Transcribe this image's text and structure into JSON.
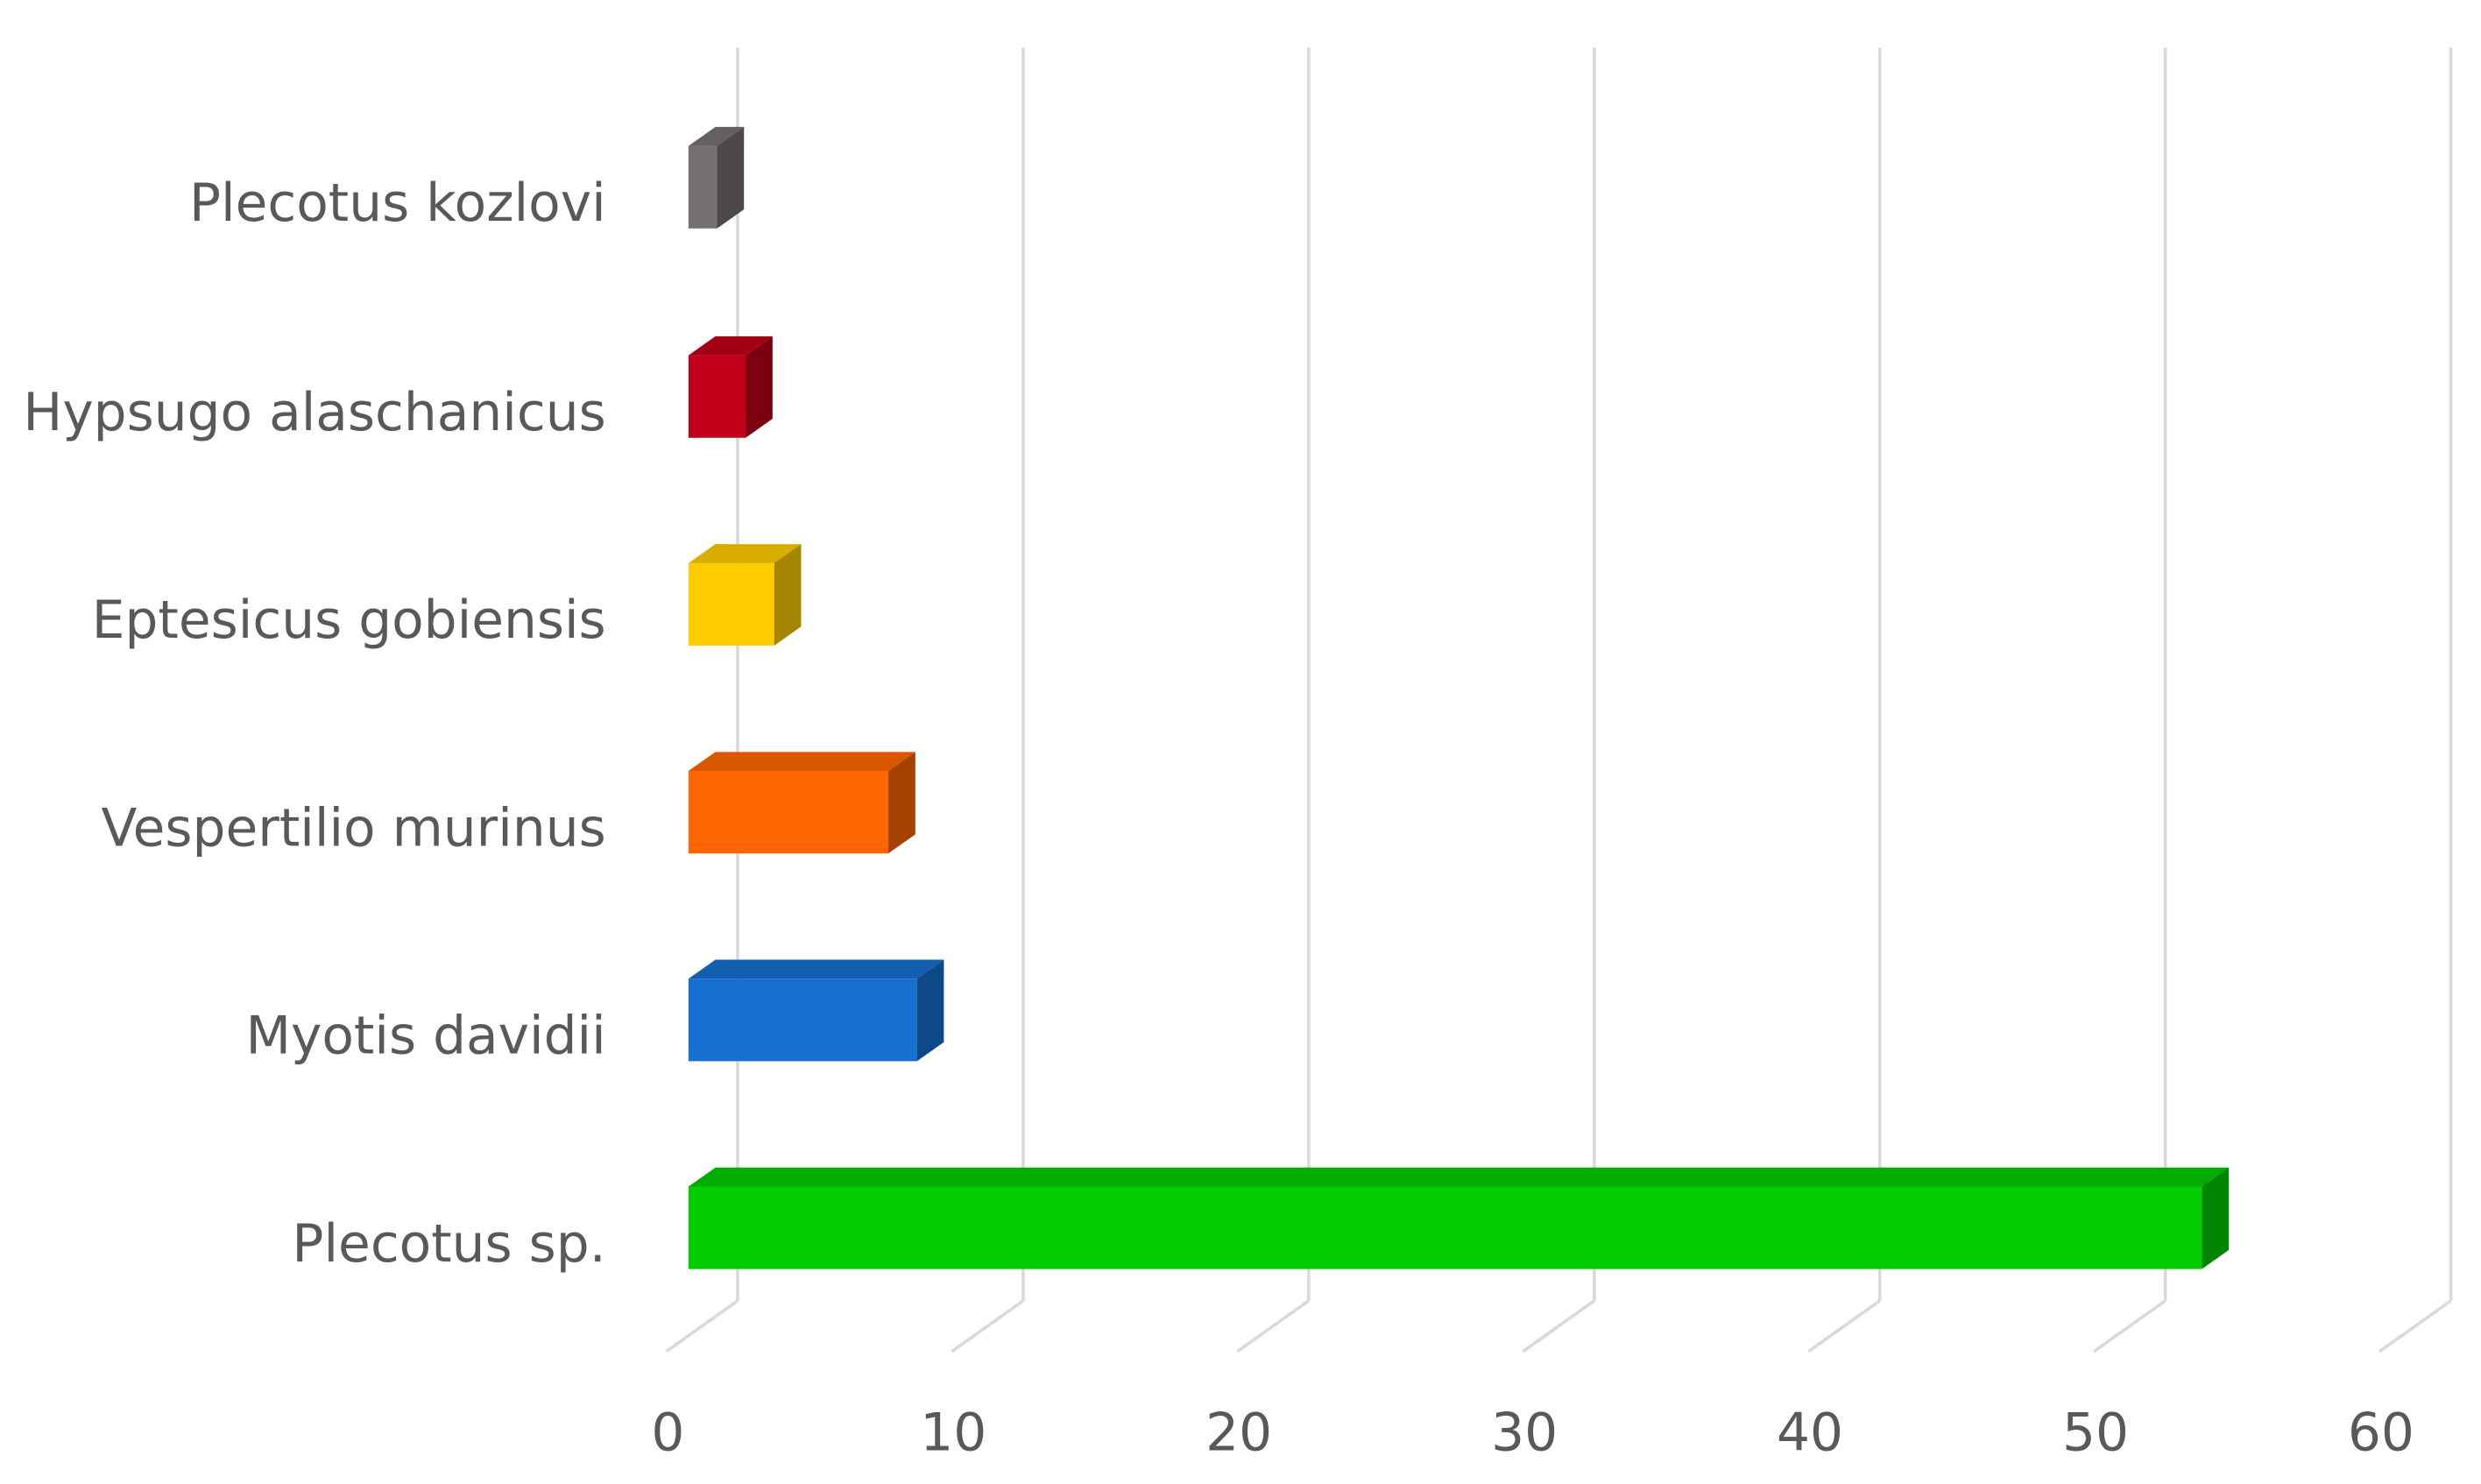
{
  "chart_data": {
    "type": "bar3d",
    "orientation": "horizontal",
    "categories": [
      "Plecotus kozlovi",
      "Hypsugo alaschanicus",
      "Eptesicus gobiensis",
      "Vespertilio murinus",
      "Myotis davidii",
      "Plecotus sp."
    ],
    "values": [
      1,
      2,
      3,
      7,
      8,
      53
    ],
    "colors": [
      "#767171",
      "#c00018",
      "#ffcc00",
      "#ff6600",
      "#1570d0",
      "#00cc00"
    ],
    "xlim": [
      0,
      60
    ],
    "xticks": [
      0,
      10,
      20,
      30,
      40,
      50,
      60
    ],
    "grid": true
  }
}
